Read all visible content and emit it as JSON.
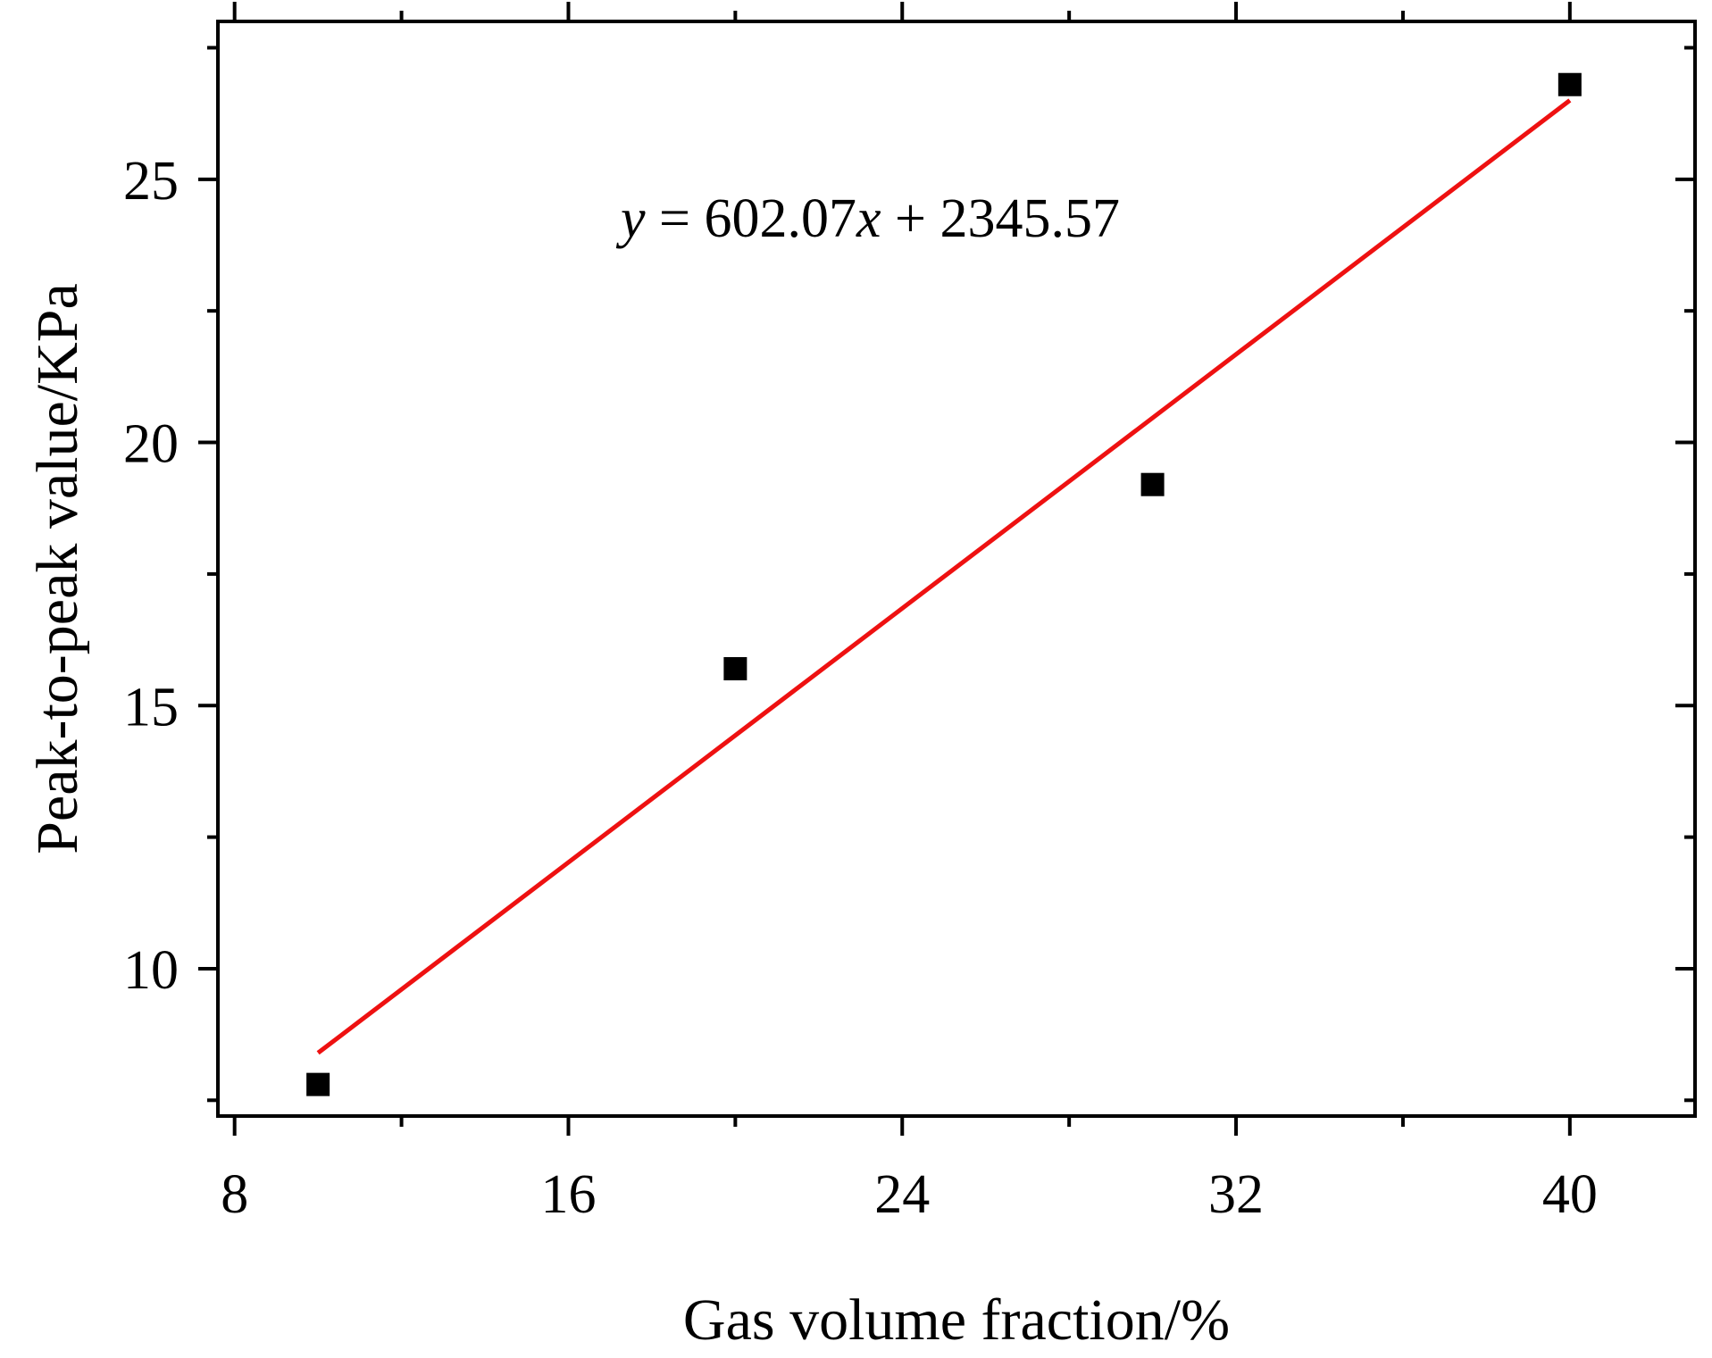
{
  "chart_data": {
    "type": "scatter",
    "title": "",
    "xlabel": "Gas volume fraction/%",
    "ylabel": "Peak-to-peak value/KPa",
    "xlim": [
      7.6,
      43.0
    ],
    "ylim": [
      7.2,
      28.0
    ],
    "xticks": [
      8,
      16,
      24,
      32,
      40
    ],
    "xtick_labels": [
      "8",
      "16",
      "24",
      "32",
      "40"
    ],
    "xminor": [
      12,
      20,
      28,
      36
    ],
    "yticks": [
      10,
      15,
      20,
      25
    ],
    "ytick_labels": [
      "10",
      "15",
      "20",
      "25"
    ],
    "yminor": [
      7.5,
      12.5,
      17.5,
      22.5,
      27.5
    ],
    "grid": false,
    "legend": "none",
    "series": [
      {
        "type": "scatter",
        "marker": "square",
        "color": "#000000",
        "x": [
          10,
          20,
          30,
          40
        ],
        "y": [
          7.8,
          15.7,
          19.2,
          26.8
        ]
      },
      {
        "type": "line",
        "color": "#ee1111",
        "x": [
          10,
          40
        ],
        "y": [
          8.4,
          26.5
        ]
      }
    ],
    "annotation": {
      "var_y": "y",
      "equals_coef": " = 602.07",
      "var_x": "x",
      "const": " + 2345.57"
    }
  }
}
